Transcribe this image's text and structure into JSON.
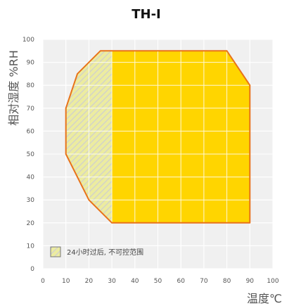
{
  "chart_data": {
    "type": "area",
    "title": "TH-I",
    "xlabel": "温度℃",
    "ylabel": "相对湿度 %RH",
    "xlim": [
      0,
      100
    ],
    "ylim": [
      0,
      100
    ],
    "x_ticks": [
      0,
      10,
      20,
      30,
      40,
      50,
      60,
      70,
      80,
      90,
      100
    ],
    "y_ticks": [
      0,
      10,
      20,
      30,
      40,
      50,
      60,
      70,
      80,
      90,
      100
    ],
    "grid": true,
    "region_color": "#ffd500",
    "outline_color": "#e8731a",
    "region": [
      {
        "x": 25,
        "y": 95
      },
      {
        "x": 80,
        "y": 95
      },
      {
        "x": 90,
        "y": 80
      },
      {
        "x": 90,
        "y": 20
      },
      {
        "x": 30,
        "y": 20
      },
      {
        "x": 20,
        "y": 30
      },
      {
        "x": 10,
        "y": 50
      },
      {
        "x": 10,
        "y": 70
      },
      {
        "x": 15,
        "y": 85
      }
    ],
    "hatched_region": [
      {
        "x": 25,
        "y": 95
      },
      {
        "x": 30,
        "y": 95
      },
      {
        "x": 30,
        "y": 20
      },
      {
        "x": 20,
        "y": 30
      },
      {
        "x": 10,
        "y": 50
      },
      {
        "x": 10,
        "y": 70
      },
      {
        "x": 15,
        "y": 85
      }
    ],
    "legend": {
      "label": "24小时过后, 不可控范围",
      "placement": "bottom-left"
    }
  }
}
